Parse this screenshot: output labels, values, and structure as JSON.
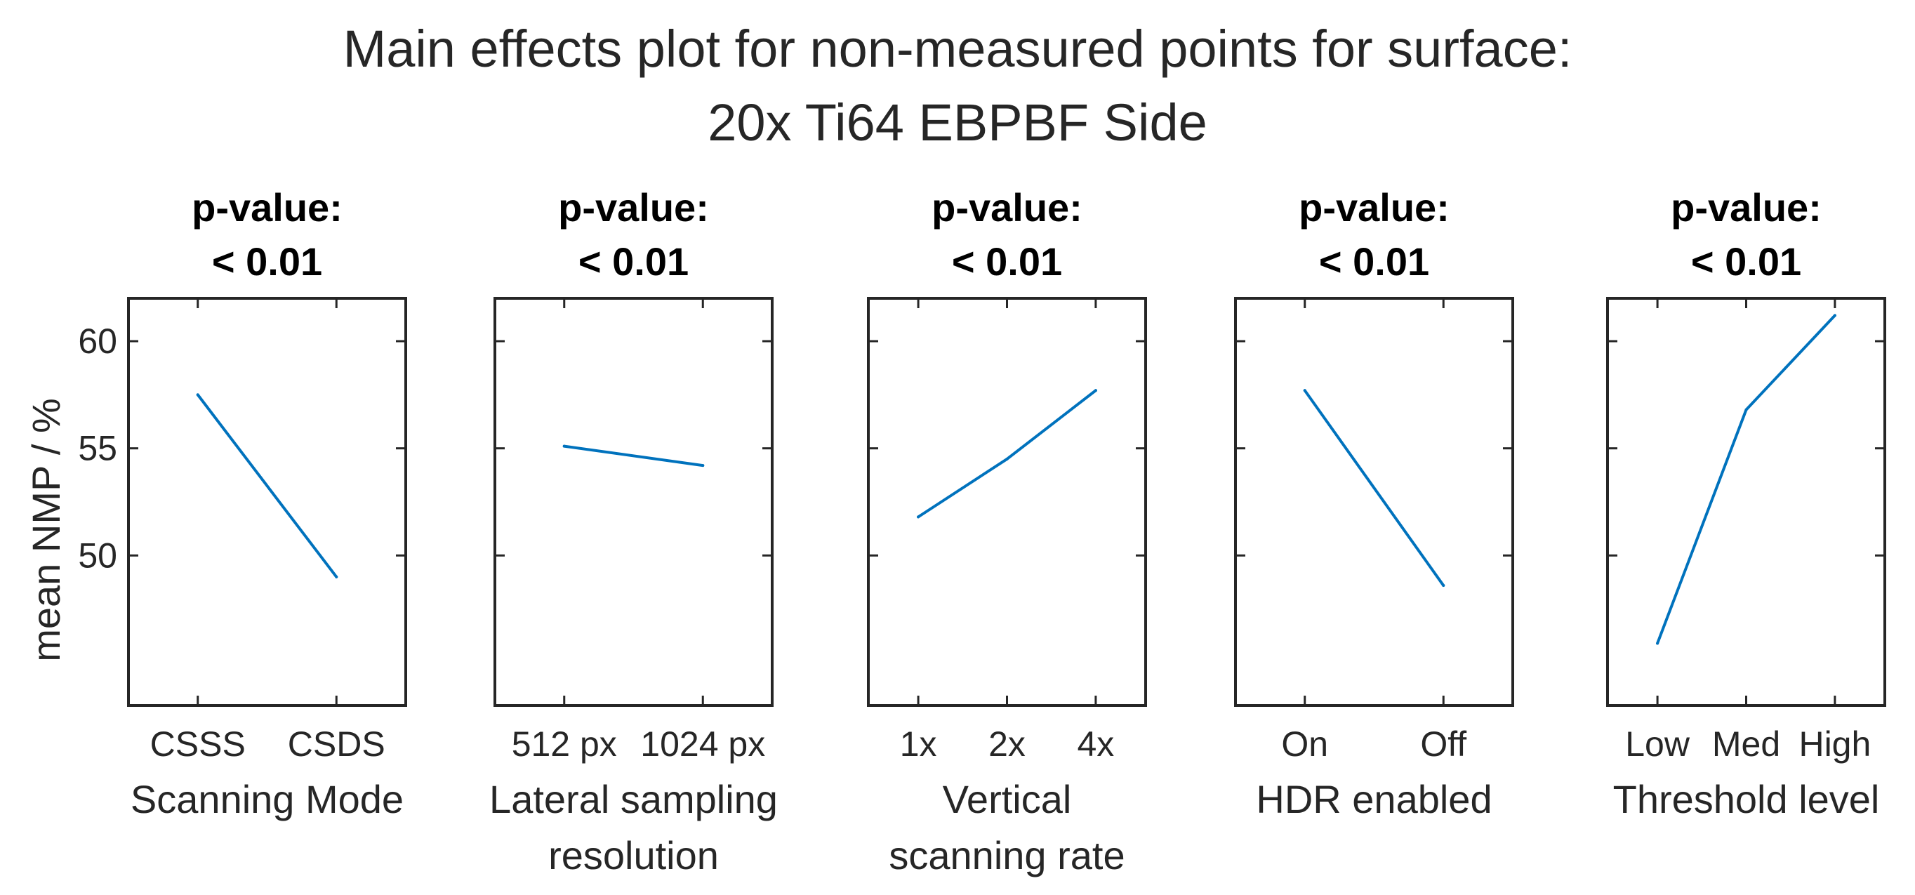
{
  "chart_data": {
    "type": "line",
    "title": [
      "Main effects plot for non-measured points for surface:",
      "20x Ti64 EBPBF Side"
    ],
    "ylabel": "mean NMP / %",
    "ylim": [
      43,
      62
    ],
    "yticks": [
      50,
      55,
      60
    ],
    "series_color": "#0072BD",
    "panels": [
      {
        "p_label": "p-value:",
        "p_value": "< 0.01",
        "xlabel": [
          "Scanning Mode"
        ],
        "categories": [
          "CSSS",
          "CSDS"
        ],
        "values": [
          57.5,
          49.0
        ]
      },
      {
        "p_label": "p-value:",
        "p_value": "< 0.01",
        "xlabel": [
          "Lateral sampling",
          "resolution"
        ],
        "categories": [
          "512 px",
          "1024 px"
        ],
        "values": [
          55.1,
          54.2
        ]
      },
      {
        "p_label": "p-value:",
        "p_value": "< 0.01",
        "xlabel": [
          "Vertical",
          "scanning rate"
        ],
        "categories": [
          "1x",
          "2x",
          "4x"
        ],
        "values": [
          51.8,
          54.5,
          57.7
        ]
      },
      {
        "p_label": "p-value:",
        "p_value": "< 0.01",
        "xlabel": [
          "HDR enabled"
        ],
        "categories": [
          "On",
          "Off"
        ],
        "values": [
          57.7,
          48.6
        ]
      },
      {
        "p_label": "p-value:",
        "p_value": "< 0.01",
        "xlabel": [
          "Threshold level"
        ],
        "categories": [
          "Low",
          "Med",
          "High"
        ],
        "values": [
          45.9,
          56.8,
          61.2
        ]
      }
    ]
  }
}
